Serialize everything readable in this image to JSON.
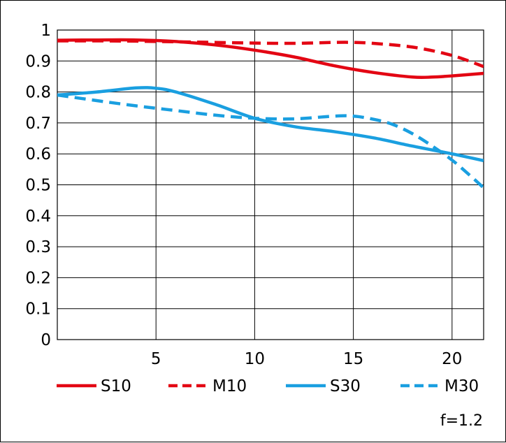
{
  "chart_data": {
    "type": "line",
    "title": "",
    "xlabel": "",
    "ylabel": "",
    "xlim": [
      0,
      21.6
    ],
    "ylim": [
      0,
      1
    ],
    "x_ticks": [
      5,
      10,
      15,
      20
    ],
    "y_ticks": [
      0,
      0.1,
      0.2,
      0.3,
      0.4,
      0.5,
      0.6,
      0.7,
      0.8,
      0.9,
      1
    ],
    "x_tick_labels": [
      "5",
      "10",
      "15",
      "20"
    ],
    "y_tick_labels": [
      "0",
      "0.1",
      "0.2",
      "0.3",
      "0.4",
      "0.5",
      "0.6",
      "0.7",
      "0.8",
      "0.9",
      "1"
    ],
    "grid": true,
    "legend_position": "bottom",
    "series": [
      {
        "name": "S10",
        "color": "#e30613",
        "dash": "solid",
        "points": [
          [
            0,
            0.967
          ],
          [
            2,
            0.968
          ],
          [
            4,
            0.968
          ],
          [
            6,
            0.963
          ],
          [
            8,
            0.952
          ],
          [
            10,
            0.935
          ],
          [
            12,
            0.913
          ],
          [
            14,
            0.885
          ],
          [
            16,
            0.863
          ],
          [
            18,
            0.848
          ],
          [
            19,
            0.848
          ],
          [
            20,
            0.852
          ],
          [
            21.6,
            0.86
          ]
        ]
      },
      {
        "name": "M10",
        "color": "#e30613",
        "dash": "dashed",
        "points": [
          [
            0,
            0.965
          ],
          [
            2,
            0.965
          ],
          [
            4,
            0.964
          ],
          [
            6,
            0.962
          ],
          [
            8,
            0.96
          ],
          [
            10,
            0.958
          ],
          [
            12,
            0.957
          ],
          [
            14,
            0.96
          ],
          [
            15,
            0.96
          ],
          [
            16,
            0.957
          ],
          [
            18,
            0.945
          ],
          [
            20,
            0.918
          ],
          [
            21.6,
            0.882
          ]
        ]
      },
      {
        "name": "S30",
        "color": "#1a9fe0",
        "dash": "solid",
        "points": [
          [
            0,
            0.79
          ],
          [
            2,
            0.8
          ],
          [
            4,
            0.813
          ],
          [
            5,
            0.812
          ],
          [
            6,
            0.8
          ],
          [
            8,
            0.76
          ],
          [
            10,
            0.715
          ],
          [
            12,
            0.688
          ],
          [
            14,
            0.672
          ],
          [
            16,
            0.652
          ],
          [
            18,
            0.625
          ],
          [
            20,
            0.6
          ],
          [
            21.6,
            0.578
          ]
        ]
      },
      {
        "name": "M30",
        "color": "#1a9fe0",
        "dash": "dashed",
        "points": [
          [
            0,
            0.79
          ],
          [
            2,
            0.772
          ],
          [
            4,
            0.755
          ],
          [
            6,
            0.74
          ],
          [
            8,
            0.725
          ],
          [
            10,
            0.715
          ],
          [
            12,
            0.713
          ],
          [
            14,
            0.722
          ],
          [
            15,
            0.722
          ],
          [
            16,
            0.712
          ],
          [
            17,
            0.695
          ],
          [
            18,
            0.665
          ],
          [
            19,
            0.625
          ],
          [
            20,
            0.58
          ],
          [
            21,
            0.525
          ],
          [
            21.6,
            0.49
          ]
        ]
      }
    ]
  },
  "annotation": "f=1.2"
}
